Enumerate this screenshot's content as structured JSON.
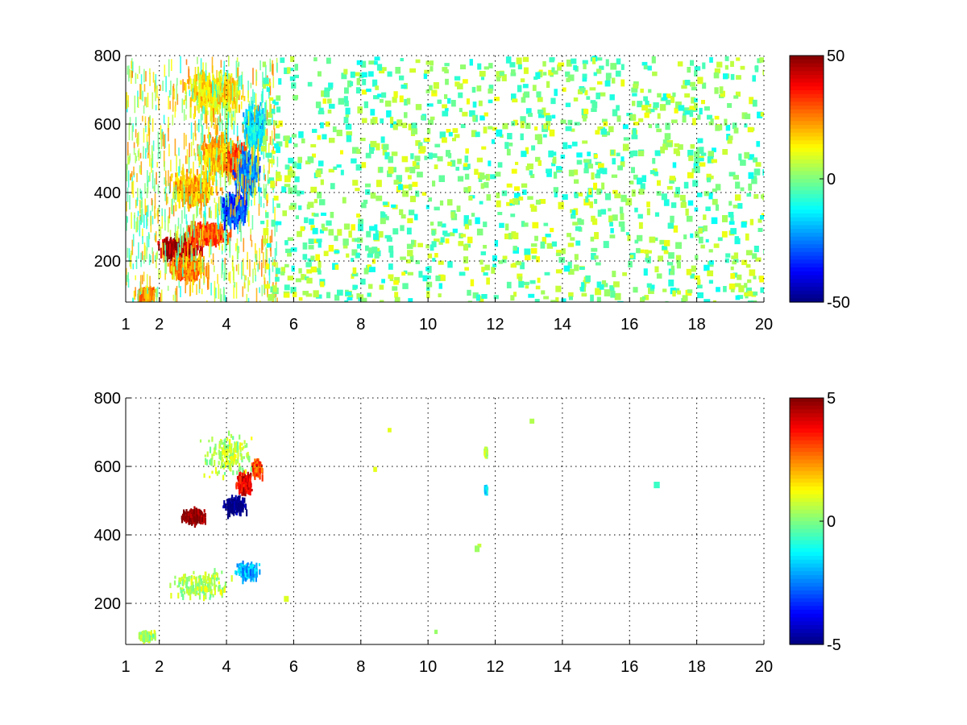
{
  "chart_data": [
    {
      "type": "heatmap",
      "title": "",
      "xlabel": "",
      "ylabel": "",
      "xlim": [
        1,
        20
      ],
      "ylim": [
        80,
        800
      ],
      "x_ticks": [
        1,
        2,
        4,
        6,
        8,
        10,
        12,
        14,
        16,
        18,
        20
      ],
      "y_ticks": [
        200,
        400,
        600,
        800
      ],
      "grid": true,
      "colormap": "jet",
      "clim": [
        -50,
        50
      ],
      "colorbar_ticks": [
        50,
        0,
        -50
      ],
      "colorbar": "right",
      "background": "#ffffff",
      "features": [
        {
          "x": 2.6,
          "y": 250,
          "value": 45,
          "dx": 1.6,
          "dy": 80
        },
        {
          "x": 3.4,
          "y": 290,
          "value": 30,
          "dx": 1.6,
          "dy": 70
        },
        {
          "x": 2.8,
          "y": 190,
          "value": 25,
          "dx": 1.2,
          "dy": 70
        },
        {
          "x": 1.6,
          "y": 110,
          "value": 25,
          "dx": 0.6,
          "dy": 40
        },
        {
          "x": 3.0,
          "y": 420,
          "value": 20,
          "dx": 1.8,
          "dy": 120
        },
        {
          "x": 3.8,
          "y": 520,
          "value": 20,
          "dx": 1.6,
          "dy": 140
        },
        {
          "x": 4.3,
          "y": 500,
          "value": 30,
          "dx": 0.8,
          "dy": 110
        },
        {
          "x": 3.6,
          "y": 700,
          "value": 15,
          "dx": 2.2,
          "dy": 160
        },
        {
          "x": 4.2,
          "y": 360,
          "value": -30,
          "dx": 0.9,
          "dy": 110
        },
        {
          "x": 4.6,
          "y": 470,
          "value": -25,
          "dx": 0.9,
          "dy": 150
        },
        {
          "x": 4.8,
          "y": 600,
          "value": -15,
          "dx": 0.8,
          "dy": 160
        }
      ],
      "noise_band_x": [
        5,
        20
      ],
      "noise_value_range": [
        -12,
        12
      ]
    },
    {
      "type": "heatmap",
      "title": "",
      "xlabel": "",
      "ylabel": "",
      "xlim": [
        1,
        20
      ],
      "ylim": [
        80,
        800
      ],
      "x_ticks": [
        1,
        2,
        4,
        6,
        8,
        10,
        12,
        14,
        16,
        18,
        20
      ],
      "y_ticks": [
        200,
        400,
        600,
        800
      ],
      "grid": true,
      "colormap": "jet",
      "clim": [
        -5,
        5
      ],
      "colorbar_ticks": [
        5,
        0,
        -5
      ],
      "colorbar": "right",
      "background": "#ffffff",
      "features": [
        {
          "x": 3.0,
          "y": 460,
          "value": 5,
          "dx": 0.9,
          "dy": 50
        },
        {
          "x": 4.2,
          "y": 490,
          "value": -5,
          "dx": 0.9,
          "dy": 60
        },
        {
          "x": 4.5,
          "y": 560,
          "value": 4,
          "dx": 0.6,
          "dy": 80
        },
        {
          "x": 4.9,
          "y": 600,
          "value": 3,
          "dx": 0.4,
          "dy": 60
        },
        {
          "x": 3.2,
          "y": 260,
          "value": 0.5,
          "dx": 2.2,
          "dy": 100
        },
        {
          "x": 4.0,
          "y": 640,
          "value": 0.5,
          "dx": 1.8,
          "dy": 160
        },
        {
          "x": 4.6,
          "y": 300,
          "value": -2,
          "dx": 0.8,
          "dy": 60
        },
        {
          "x": 1.6,
          "y": 110,
          "value": 0.3,
          "dx": 0.6,
          "dy": 30
        },
        {
          "x": 11.7,
          "y": 650,
          "value": 0.5,
          "dx": 0.1,
          "dy": 20
        },
        {
          "x": 11.7,
          "y": 540,
          "value": -1.5,
          "dx": 0.1,
          "dy": 15
        }
      ],
      "noise_band_x": [
        5,
        20
      ],
      "noise_value_range": [
        -1,
        1
      ]
    }
  ]
}
